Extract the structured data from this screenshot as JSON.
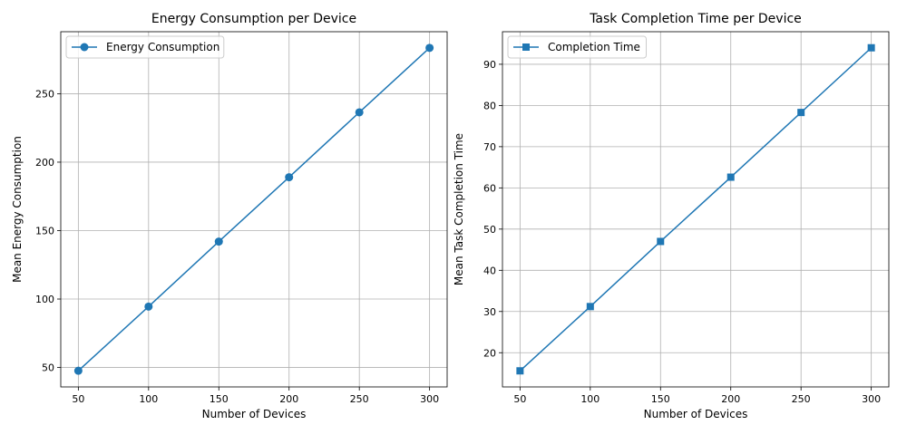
{
  "chart_data": [
    {
      "type": "line",
      "title": "Energy Consumption per Device",
      "xlabel": "Number of Devices",
      "ylabel": "Mean Energy Consumption",
      "x": [
        50,
        100,
        150,
        200,
        250,
        300
      ],
      "series": [
        {
          "name": "Energy Consumption",
          "values": [
            47.6,
            94.5,
            142.0,
            189.0,
            236.4,
            283.5
          ],
          "color": "#1f77b4",
          "marker": "circle"
        }
      ],
      "xticks": [
        "50",
        "100",
        "150",
        "200",
        "250",
        "300"
      ],
      "yticks": [
        "50",
        "100",
        "150",
        "200",
        "250"
      ],
      "xlim": [
        37.5,
        312.5
      ],
      "ylim": [
        35.8,
        295.3
      ],
      "grid": true,
      "legend": "upper-left"
    },
    {
      "type": "line",
      "title": "Task Completion Time per Device",
      "xlabel": "Number of Devices",
      "ylabel": "Mean Task Completion Time",
      "x": [
        50,
        100,
        150,
        200,
        250,
        300
      ],
      "series": [
        {
          "name": "Completion Time",
          "values": [
            15.6,
            31.2,
            47.0,
            62.6,
            78.3,
            94.0
          ],
          "color": "#1f77b4",
          "marker": "square"
        }
      ],
      "xticks": [
        "50",
        "100",
        "150",
        "200",
        "250",
        "300"
      ],
      "yticks": [
        "20",
        "30",
        "40",
        "50",
        "60",
        "70",
        "80",
        "90"
      ],
      "xlim": [
        37.5,
        312.5
      ],
      "ylim": [
        11.7,
        97.9
      ],
      "grid": true,
      "legend": "upper-left"
    }
  ]
}
